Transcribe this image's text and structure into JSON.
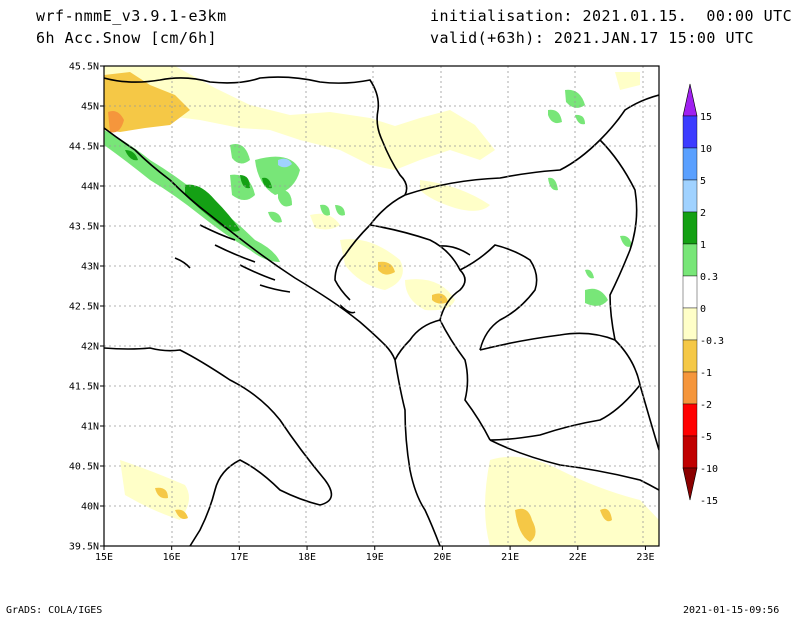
{
  "header": {
    "model": "wrf-nmmE_v3.9.1-e3km",
    "field": "6h Acc.Snow [cm/6h]",
    "init": "initialisation: 2021.01.15.  00:00 UTC",
    "valid": "valid(+63h): 2021.JAN.17 15:00 UTC"
  },
  "axes": {
    "lat_labels": [
      "45.5N",
      "45N",
      "44.5N",
      "44N",
      "43.5N",
      "43N",
      "42.5N",
      "42N",
      "41.5N",
      "41N",
      "40.5N",
      "40N",
      "39.5N"
    ],
    "lon_labels": [
      "15E",
      "16E",
      "17E",
      "18E",
      "19E",
      "20E",
      "21E",
      "22E",
      "23E"
    ],
    "lat_range": [
      39.5,
      45.5
    ],
    "lon_range": [
      15,
      23.2
    ]
  },
  "colorbar": {
    "levels": [
      "15",
      "10",
      "5",
      "2",
      "1",
      "0.3",
      "0",
      "-0.3",
      "-1",
      "-2",
      "-5",
      "-10",
      "-15"
    ],
    "colors": [
      "#a020f0",
      "#3c3cff",
      "#5aa0ff",
      "#a0d2ff",
      "#14a014",
      "#78e678",
      "#ffffff",
      "#ffffc8",
      "#f5c846",
      "#f5963c",
      "#ff0000",
      "#c00000",
      "#8b0000"
    ]
  },
  "footer": {
    "left": "GrADS: COLA/IGES",
    "right": "2021-01-15-09:56"
  }
}
